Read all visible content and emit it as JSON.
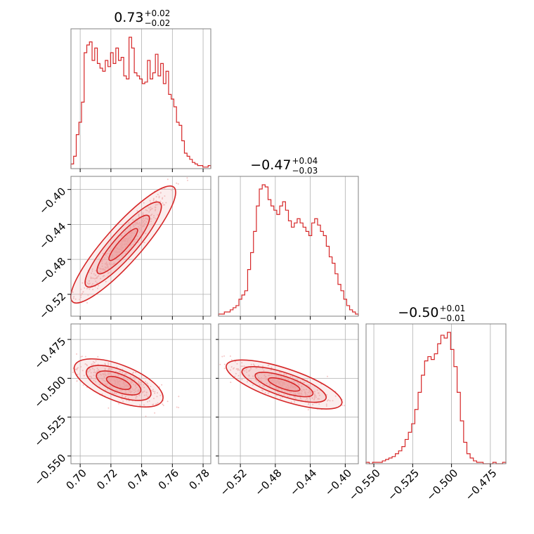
{
  "colors": {
    "accent": "#d62728",
    "fill": "#eb9a9a",
    "scatter": "#f5c6c6",
    "grid": "#b0b0b0",
    "frame": "#808080"
  },
  "chart_data": {
    "type": "corner",
    "parameters": 3,
    "titles": [
      {
        "main": "0.73",
        "upper": "+0.02",
        "lower": "−0.02"
      },
      {
        "main": "−0.47",
        "upper": "+0.04",
        "lower": "−0.03"
      },
      {
        "main": "−0.50",
        "upper": "+0.01",
        "lower": "−0.01"
      }
    ],
    "ranges": [
      [
        0.694,
        0.785
      ],
      [
        -0.545,
        -0.385
      ],
      [
        -0.555,
        -0.465
      ]
    ],
    "x_ticks": [
      {
        "values": [
          0.7,
          0.72,
          0.74,
          0.76,
          0.78
        ],
        "labels": [
          "0.70",
          "0.72",
          "0.74",
          "0.76",
          "0.78"
        ]
      },
      {
        "values": [
          -0.52,
          -0.48,
          -0.44,
          -0.4
        ],
        "labels": [
          "−0.52",
          "−0.48",
          "−0.44",
          "−0.40"
        ]
      },
      {
        "values": [
          -0.55,
          -0.525,
          -0.5,
          -0.475
        ],
        "labels": [
          "−0.550",
          "−0.525",
          "−0.500",
          "−0.475"
        ]
      }
    ],
    "y_ticks": [
      null,
      {
        "values": [
          -0.4,
          -0.44,
          -0.48,
          -0.52
        ],
        "labels": [
          "−0.40",
          "−0.44",
          "−0.48",
          "−0.52"
        ]
      },
      {
        "values": [
          -0.475,
          -0.5,
          -0.525,
          -0.55
        ],
        "labels": [
          "−0.475",
          "−0.500",
          "−0.525",
          "−0.550"
        ]
      }
    ],
    "histograms": [
      {
        "counts": [
          3,
          8,
          22,
          30,
          43,
          75,
          80,
          82,
          70,
          78,
          68,
          65,
          63,
          70,
          66,
          75,
          68,
          78,
          70,
          72,
          60,
          58,
          85,
          78,
          62,
          60,
          58,
          55,
          56,
          70,
          58,
          62,
          74,
          60,
          68,
          55,
          63,
          48,
          45,
          40,
          30,
          28,
          18,
          10,
          8,
          6,
          4,
          3,
          2,
          2,
          1,
          1,
          2
        ]
      },
      {
        "counts": [
          1,
          1,
          2,
          2,
          3,
          4,
          5,
          8,
          10,
          12,
          22,
          30,
          40,
          52,
          60,
          62,
          61,
          55,
          52,
          50,
          48,
          52,
          54,
          50,
          45,
          42,
          44,
          46,
          44,
          42,
          40,
          38,
          44,
          46,
          43,
          40,
          38,
          33,
          28,
          25,
          20,
          15,
          12,
          8,
          5,
          3,
          2,
          1
        ]
      },
      {
        "counts": [
          1,
          0,
          1,
          1,
          1,
          2,
          3,
          4,
          5,
          7,
          9,
          12,
          17,
          22,
          28,
          38,
          50,
          62,
          72,
          75,
          73,
          77,
          84,
          90,
          88,
          92,
          80,
          68,
          50,
          30,
          15,
          7,
          4,
          2,
          1,
          1,
          0,
          0,
          0,
          1,
          0,
          0,
          1
        ]
      }
    ],
    "pairs": [
      {
        "x_param": 0,
        "y_param": 1,
        "correlation": "positive",
        "x_center": 0.728,
        "y_center": -0.463,
        "x_sd": 0.015,
        "y_sd": 0.031,
        "rho": 0.96
      },
      {
        "x_param": 0,
        "y_param": 2,
        "correlation": "negative",
        "x_center": 0.725,
        "y_center": -0.503,
        "x_sd": 0.013,
        "y_sd": 0.007,
        "rho": -0.72
      },
      {
        "x_param": 1,
        "y_param": 2,
        "correlation": "negative",
        "x_center": -0.47,
        "y_center": -0.504,
        "x_sd": 0.03,
        "y_sd": 0.007,
        "rho": -0.8
      }
    ],
    "grid": true,
    "legend": "none"
  }
}
